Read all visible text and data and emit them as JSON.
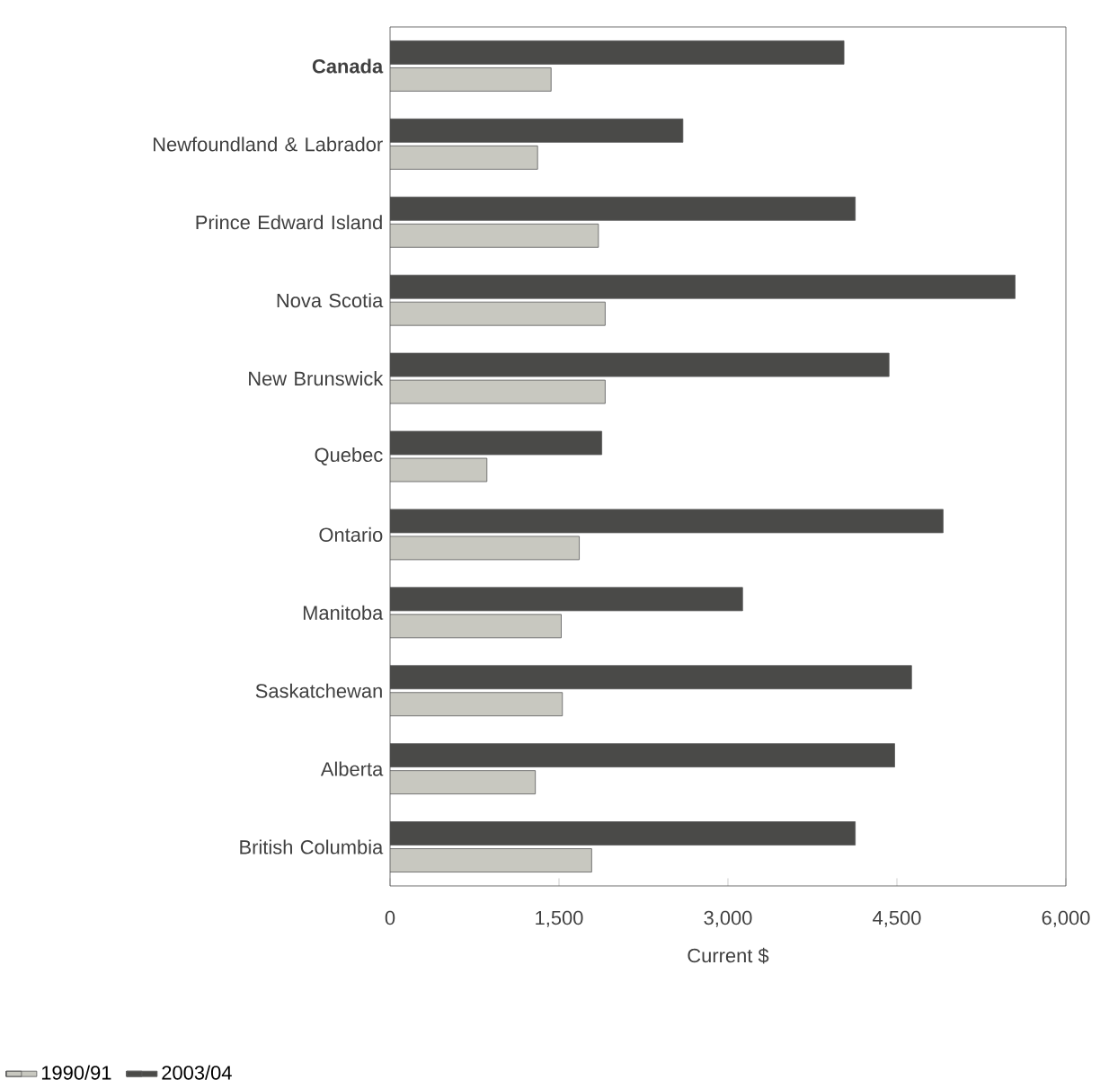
{
  "chart_data": {
    "type": "bar",
    "orientation": "horizontal",
    "xlabel": "Current $",
    "categories": [
      "**Canada**",
      "Newfoundland & Labrador",
      "Prince Edward Island",
      "Nova Scotia",
      "New Brunswick",
      "Quebec",
      "Ontario",
      "Manitoba",
      "Saskatchewan",
      "Alberta",
      "British Columbia"
    ],
    "series": [
      {
        "name": "1990/91",
        "color": "#c8c8c0",
        "values": [
          1430,
          1310,
          1850,
          1910,
          1910,
          860,
          1680,
          1520,
          1530,
          1290,
          1790
        ]
      },
      {
        "name": "2003/04",
        "color": "#4a4a48",
        "values": [
          4030,
          2600,
          4130,
          5550,
          4430,
          1880,
          4910,
          3130,
          4630,
          4480,
          4130
        ]
      }
    ],
    "xlim": [
      0,
      6000
    ],
    "xticks": [
      0,
      {
        "value": 1500,
        "label": "1,500"
      },
      {
        "value": 3000,
        "label": "3,000"
      },
      {
        "value": 4500,
        "label": "4,500"
      },
      {
        "value": 6000,
        "label": "6,000"
      }
    ],
    "legend": "bottom left",
    "grid": false
  }
}
